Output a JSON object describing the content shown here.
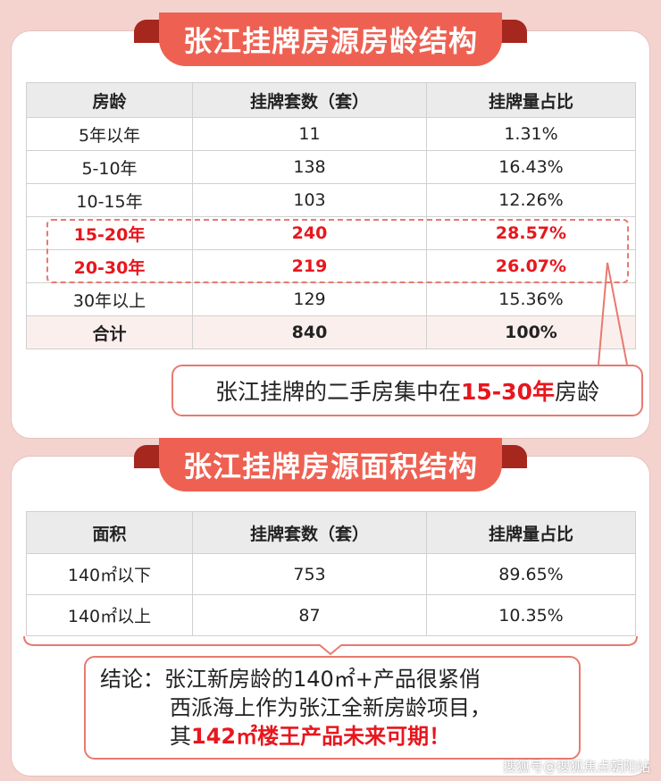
{
  "section1": {
    "title": "张江挂牌房源房龄结构",
    "headers": [
      "房龄",
      "挂牌套数（套）",
      "挂牌量占比"
    ],
    "rows": [
      [
        "5年以年",
        "11",
        "1.31%"
      ],
      [
        "5-10年",
        "138",
        "16.43%"
      ],
      [
        "10-15年",
        "103",
        "12.26%"
      ],
      [
        "15-20年",
        "240",
        "28.57%"
      ],
      [
        "20-30年",
        "219",
        "26.07%"
      ],
      [
        "30年以上",
        "129",
        "15.36%"
      ],
      [
        "合计",
        "840",
        "100%"
      ]
    ],
    "callout_prefix": "张江挂牌的二手房集中在",
    "callout_highlight": "15-30年",
    "callout_suffix": "房龄"
  },
  "section2": {
    "title": "张江挂牌房源面积结构",
    "headers": [
      "面积",
      "挂牌套数（套）",
      "挂牌量占比"
    ],
    "rows": [
      [
        "140㎡以下",
        "753",
        "89.65%"
      ],
      [
        "140㎡以上",
        "87",
        "10.35%"
      ]
    ],
    "conclusion_line1": "结论：张江新房龄的140㎡+产品很紧俏",
    "conclusion_line2": "西派海上作为张江全新房龄项目，",
    "conclusion_line3_prefix": "其",
    "conclusion_line3_highlight": "142㎡楼王产品未来可期！"
  },
  "watermark": "搜狐号@搜狐焦点朝阳站",
  "colors": {
    "ribbon": "#ee6152",
    "ribbon_dark": "#a5271e",
    "highlight_red": "#e8161d",
    "background": "#f4d3cf"
  }
}
